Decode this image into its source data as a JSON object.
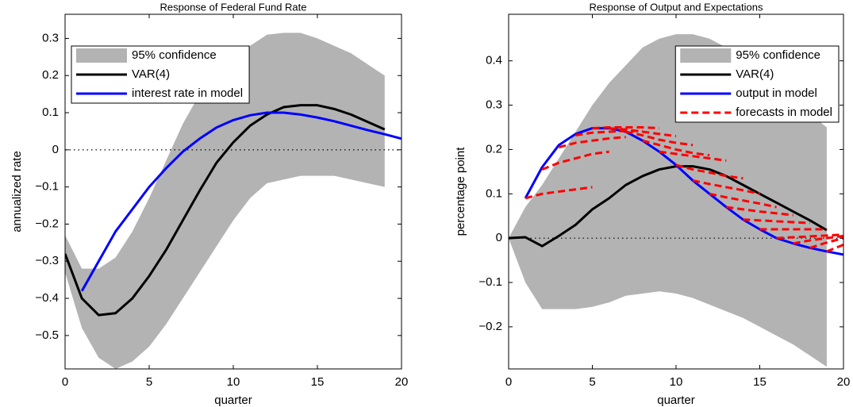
{
  "chart_data": [
    {
      "type": "line",
      "title": "Response of Federal Fund Rate",
      "x_label": "quarter",
      "y_label": "annualized rate",
      "xlim": [
        0,
        20
      ],
      "ylim": [
        -0.59,
        0.365
      ],
      "xticks": [
        0,
        5,
        10,
        15,
        20
      ],
      "yticks": [
        {
          "value": -0.5,
          "label": "−0.5"
        },
        {
          "value": -0.4,
          "label": "−0.4"
        },
        {
          "value": -0.3,
          "label": "−0.3"
        },
        {
          "value": -0.2,
          "label": "−0.2"
        },
        {
          "value": -0.1,
          "label": "−0.1"
        },
        0,
        0.1,
        0.2,
        0.3
      ],
      "zero_line": true,
      "legend": "upper left",
      "band": {
        "name": "95% confidence",
        "color": "#b3b3b3",
        "x": [
          0,
          1,
          2,
          3,
          4,
          5,
          6,
          7,
          8,
          9,
          10,
          11,
          12,
          13,
          14,
          15,
          16,
          17,
          18,
          19
        ],
        "upper": [
          -0.23,
          -0.32,
          -0.32,
          -0.29,
          -0.22,
          -0.13,
          -0.03,
          0.07,
          0.15,
          0.21,
          0.25,
          0.28,
          0.31,
          0.315,
          0.315,
          0.3,
          0.28,
          0.26,
          0.23,
          0.2
        ],
        "lower": [
          -0.33,
          -0.48,
          -0.56,
          -0.59,
          -0.57,
          -0.53,
          -0.47,
          -0.4,
          -0.33,
          -0.26,
          -0.19,
          -0.13,
          -0.09,
          -0.08,
          -0.07,
          -0.07,
          -0.07,
          -0.08,
          -0.09,
          -0.1
        ]
      },
      "series": [
        {
          "name": "VAR(4)",
          "color": "#000000",
          "x": [
            0,
            1,
            2,
            3,
            4,
            5,
            6,
            7,
            8,
            9,
            10,
            11,
            12,
            13,
            14,
            15,
            16,
            17,
            18,
            19
          ],
          "values": [
            -0.28,
            -0.4,
            -0.445,
            -0.44,
            -0.4,
            -0.34,
            -0.27,
            -0.19,
            -0.11,
            -0.035,
            0.02,
            0.065,
            0.095,
            0.115,
            0.12,
            0.12,
            0.11,
            0.095,
            0.075,
            0.055
          ]
        },
        {
          "name": "interest rate in model",
          "color": "#0000ff",
          "x": [
            1,
            2,
            3,
            4,
            5,
            6,
            7,
            8,
            9,
            10,
            11,
            12,
            13,
            14,
            15,
            16,
            17,
            18,
            19,
            20
          ],
          "values": [
            -0.38,
            -0.3,
            -0.22,
            -0.16,
            -0.1,
            -0.05,
            -0.005,
            0.03,
            0.06,
            0.08,
            0.093,
            0.1,
            0.1,
            0.095,
            0.087,
            0.077,
            0.065,
            0.053,
            0.042,
            0.03
          ]
        }
      ]
    },
    {
      "type": "line",
      "title": "Response of Output and Expectations",
      "x_label": "quarter",
      "y_label": "percentage point",
      "xlim": [
        0,
        20
      ],
      "ylim": [
        -0.295,
        0.505
      ],
      "xticks": [
        0,
        5,
        10,
        15,
        20
      ],
      "yticks": [
        {
          "value": -0.2,
          "label": "−0.2"
        },
        {
          "value": -0.1,
          "label": "−0.1"
        },
        0,
        0.1,
        0.2,
        0.3,
        0.4
      ],
      "zero_line": true,
      "legend": "upper right",
      "band": {
        "name": "95% confidence",
        "color": "#b3b3b3",
        "x": [
          0,
          1,
          2,
          3,
          4,
          5,
          6,
          7,
          8,
          9,
          10,
          11,
          12,
          13,
          14,
          15,
          16,
          17,
          18,
          19
        ],
        "upper": [
          0,
          0.07,
          0.12,
          0.18,
          0.24,
          0.3,
          0.35,
          0.39,
          0.43,
          0.45,
          0.46,
          0.46,
          0.45,
          0.43,
          0.4,
          0.37,
          0.34,
          0.31,
          0.28,
          0.25
        ],
        "lower": [
          0,
          -0.1,
          -0.16,
          -0.16,
          -0.16,
          -0.155,
          -0.145,
          -0.13,
          -0.125,
          -0.12,
          -0.125,
          -0.135,
          -0.15,
          -0.165,
          -0.18,
          -0.2,
          -0.22,
          -0.24,
          -0.265,
          -0.29
        ]
      },
      "series": [
        {
          "name": "VAR(4)",
          "color": "#000000",
          "x": [
            0,
            1,
            2,
            3,
            4,
            5,
            6,
            7,
            8,
            9,
            10,
            11,
            12,
            13,
            14,
            15,
            16,
            17,
            18,
            19
          ],
          "values": [
            0,
            0.002,
            -0.018,
            0.005,
            0.03,
            0.065,
            0.09,
            0.12,
            0.14,
            0.155,
            0.162,
            0.162,
            0.155,
            0.14,
            0.12,
            0.1,
            0.08,
            0.06,
            0.04,
            0.018
          ]
        },
        {
          "name": "output in model",
          "color": "#0000ff",
          "x": [
            1,
            2,
            3,
            4,
            5,
            6,
            7,
            8,
            9,
            10,
            11,
            12,
            13,
            14,
            15,
            16,
            17,
            18,
            19,
            20
          ],
          "values": [
            0.09,
            0.16,
            0.21,
            0.235,
            0.248,
            0.248,
            0.24,
            0.22,
            0.195,
            0.165,
            0.13,
            0.1,
            0.07,
            0.042,
            0.02,
            0,
            -0.012,
            -0.022,
            -0.03,
            -0.037
          ]
        }
      ],
      "forecasts": {
        "name": "forecasts in model",
        "color": "#ff0000",
        "segments": [
          {
            "x": [
              1,
              2,
              3,
              4,
              5
            ],
            "values": [
              0.09,
              0.1,
              0.105,
              0.11,
              0.115
            ]
          },
          {
            "x": [
              2,
              3,
              4,
              5,
              6
            ],
            "values": [
              0.155,
              0.17,
              0.18,
              0.19,
              0.195
            ]
          },
          {
            "x": [
              3,
              4,
              5,
              6,
              7
            ],
            "values": [
              0.205,
              0.215,
              0.22,
              0.225,
              0.228
            ]
          },
          {
            "x": [
              4,
              5,
              6,
              7,
              8
            ],
            "values": [
              0.232,
              0.238,
              0.24,
              0.242,
              0.242
            ]
          },
          {
            "x": [
              5,
              6,
              7,
              8,
              9
            ],
            "values": [
              0.248,
              0.25,
              0.25,
              0.25,
              0.248
            ]
          },
          {
            "x": [
              6,
              7,
              8,
              9,
              10
            ],
            "values": [
              0.248,
              0.245,
              0.24,
              0.235,
              0.23
            ]
          },
          {
            "x": [
              7,
              8,
              9,
              10,
              11
            ],
            "values": [
              0.24,
              0.232,
              0.222,
              0.215,
              0.21
            ]
          },
          {
            "x": [
              8,
              9,
              10,
              11,
              12
            ],
            "values": [
              0.22,
              0.21,
              0.2,
              0.192,
              0.187
            ]
          },
          {
            "x": [
              9,
              10,
              11,
              12,
              13
            ],
            "values": [
              0.195,
              0.19,
              0.185,
              0.18,
              0.175
            ]
          },
          {
            "x": [
              10,
              11,
              12,
              13,
              14
            ],
            "values": [
              0.165,
              0.155,
              0.148,
              0.14,
              0.135
            ]
          },
          {
            "x": [
              11,
              12,
              13,
              14,
              15
            ],
            "values": [
              0.13,
              0.122,
              0.115,
              0.108,
              0.1
            ]
          },
          {
            "x": [
              12,
              13,
              14,
              15,
              16
            ],
            "values": [
              0.1,
              0.092,
              0.085,
              0.078,
              0.07
            ]
          },
          {
            "x": [
              13,
              14,
              15,
              16,
              17
            ],
            "values": [
              0.07,
              0.065,
              0.06,
              0.056,
              0.052
            ]
          },
          {
            "x": [
              14,
              15,
              16,
              17,
              18
            ],
            "values": [
              0.042,
              0.04,
              0.038,
              0.036,
              0.034
            ]
          },
          {
            "x": [
              15,
              16,
              17,
              18,
              19
            ],
            "values": [
              0.02,
              0.02,
              0.02,
              0.02,
              0.02
            ]
          },
          {
            "x": [
              16,
              17,
              18,
              19,
              20
            ],
            "values": [
              0,
              0.002,
              0.004,
              0.006,
              0.008
            ]
          },
          {
            "x": [
              17,
              18,
              19,
              20
            ],
            "values": [
              -0.012,
              -0.005,
              0,
              0.005
            ]
          },
          {
            "x": [
              18,
              19,
              20
            ],
            "values": [
              -0.022,
              -0.01,
              0
            ]
          },
          {
            "x": [
              19,
              20
            ],
            "values": [
              -0.03,
              -0.015
            ]
          }
        ]
      }
    }
  ]
}
